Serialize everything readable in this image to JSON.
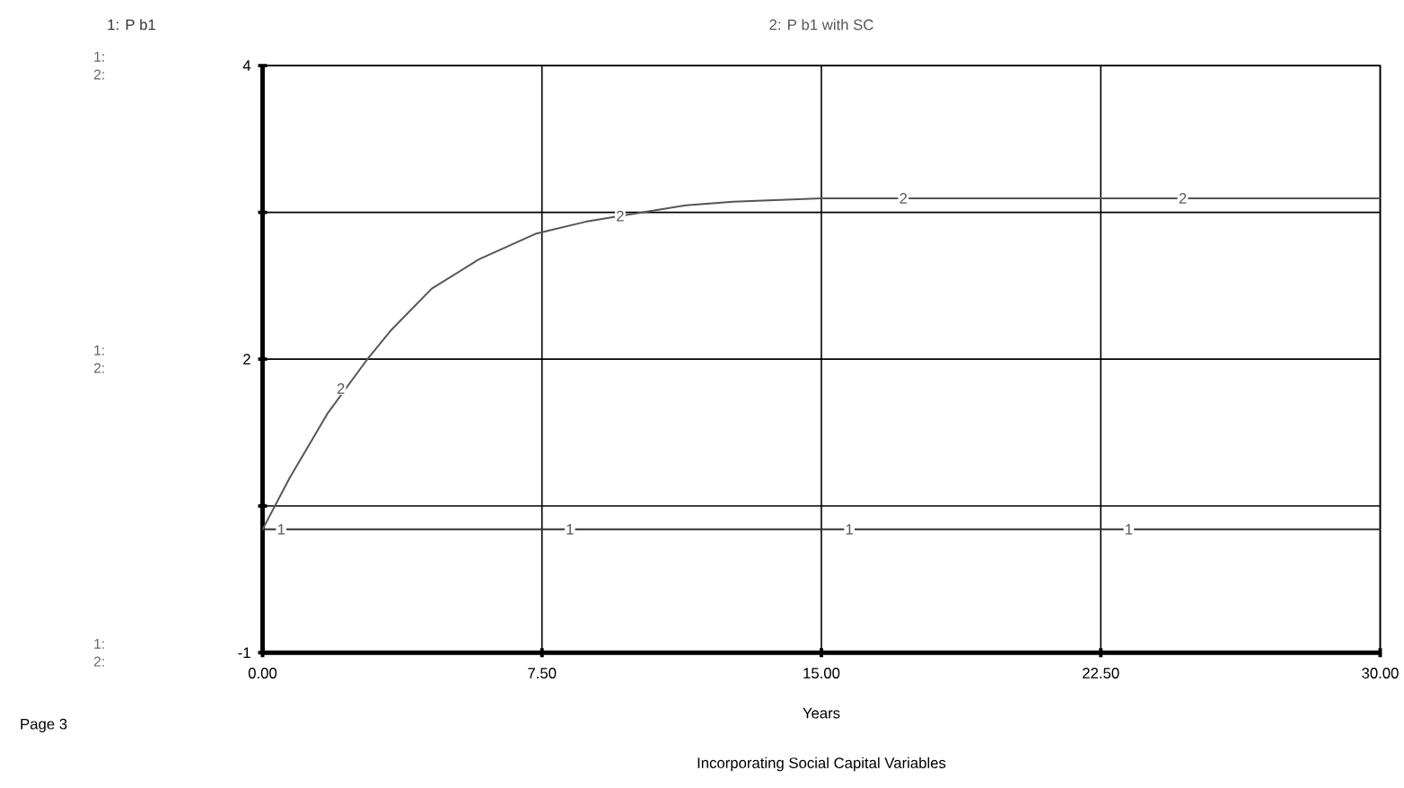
{
  "chart_data": {
    "type": "line",
    "title": "Incorporating Social Capital Variables",
    "xlabel": "Years",
    "legend": "top",
    "grid": true,
    "xlim": [
      0,
      30
    ],
    "xticks": [
      {
        "value": 0,
        "label": "0.00"
      },
      {
        "value": 7.5,
        "label": "7.50"
      },
      {
        "value": 15,
        "label": "15.00"
      },
      {
        "value": 22.5,
        "label": "22.50"
      },
      {
        "value": 30,
        "label": "30.00"
      }
    ],
    "ylim": [
      -1,
      4
    ],
    "yticks": [
      {
        "value": -1,
        "label": "-1"
      },
      {
        "value": 0.25,
        "label": null
      },
      {
        "value": 1.5,
        "label": "2"
      },
      {
        "value": 2.75,
        "label": null
      },
      {
        "value": 4,
        "label": "4"
      }
    ],
    "series": [
      {
        "name": "1: P b1",
        "color": "#333333",
        "x": [
          0,
          30
        ],
        "values": [
          0.05,
          0.05
        ]
      },
      {
        "name": "2: P b1 with SC",
        "color": "#555555",
        "x": [
          0,
          0.73,
          1.75,
          2.79,
          3.43,
          4.54,
          5.81,
          7.35,
          8.67,
          9.62,
          11.37,
          12.63,
          15,
          30
        ],
        "values": [
          0.05,
          0.49,
          1.04,
          1.49,
          1.74,
          2.1,
          2.35,
          2.57,
          2.67,
          2.72,
          2.81,
          2.84,
          2.87,
          2.87
        ]
      }
    ],
    "annotations": [
      "Page 3",
      "1:",
      "2:",
      "1:",
      "2:",
      "1:",
      "2:",
      {
        "text": "1",
        "x": 0.5,
        "y": 0.05
      },
      {
        "text": "1",
        "x": 8.25,
        "y": 0.05
      },
      {
        "text": "1",
        "x": 15.75,
        "y": 0.05
      },
      {
        "text": "1",
        "x": 23.25,
        "y": 0.05
      },
      {
        "text": "2",
        "x": 2.1,
        "y": 1.25
      },
      {
        "text": "2",
        "x": 9.6,
        "y": 2.72
      },
      {
        "text": "2",
        "x": 17.2,
        "y": 2.87
      },
      {
        "text": "2",
        "x": 24.7,
        "y": 2.87
      }
    ]
  }
}
